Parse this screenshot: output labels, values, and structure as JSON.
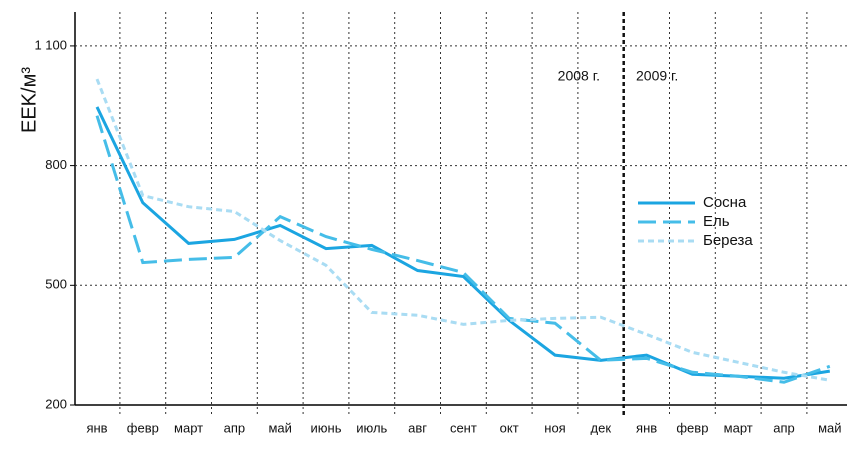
{
  "chart_data": {
    "type": "line",
    "ylabel": "EEK/м³",
    "annotations": [
      "2008 г.",
      "2009 г."
    ],
    "categories": [
      "янв",
      "февр",
      "март",
      "апр",
      "май",
      "июнь",
      "июль",
      "авг",
      "сент",
      "окт",
      "ноя",
      "дек",
      "янв",
      "февр",
      "март",
      "апр",
      "май"
    ],
    "series": [
      {
        "name": "Сосна",
        "color": "#1ba5e1",
        "dash": "solid",
        "values": [
          947,
          707,
          605,
          615,
          650,
          592,
          600,
          537,
          522,
          412,
          325,
          312,
          325,
          277,
          272,
          267,
          285
        ]
      },
      {
        "name": "Ель",
        "color": "#45bde8",
        "dash": "long",
        "values": [
          925,
          557,
          565,
          570,
          672,
          622,
          590,
          562,
          532,
          417,
          405,
          312,
          317,
          282,
          272,
          257,
          297
        ]
      },
      {
        "name": "Береза",
        "color": "#a9dcf3",
        "dash": "short",
        "values": [
          1017,
          725,
          697,
          685,
          612,
          550,
          432,
          425,
          402,
          412,
          417,
          420,
          377,
          332,
          307,
          282,
          262
        ]
      }
    ],
    "ylim": [
      200,
      1185
    ],
    "yticks": [
      200,
      500,
      800,
      {
        "value": 1100,
        "label": "1 100"
      }
    ],
    "grid": true,
    "legend": "right"
  }
}
